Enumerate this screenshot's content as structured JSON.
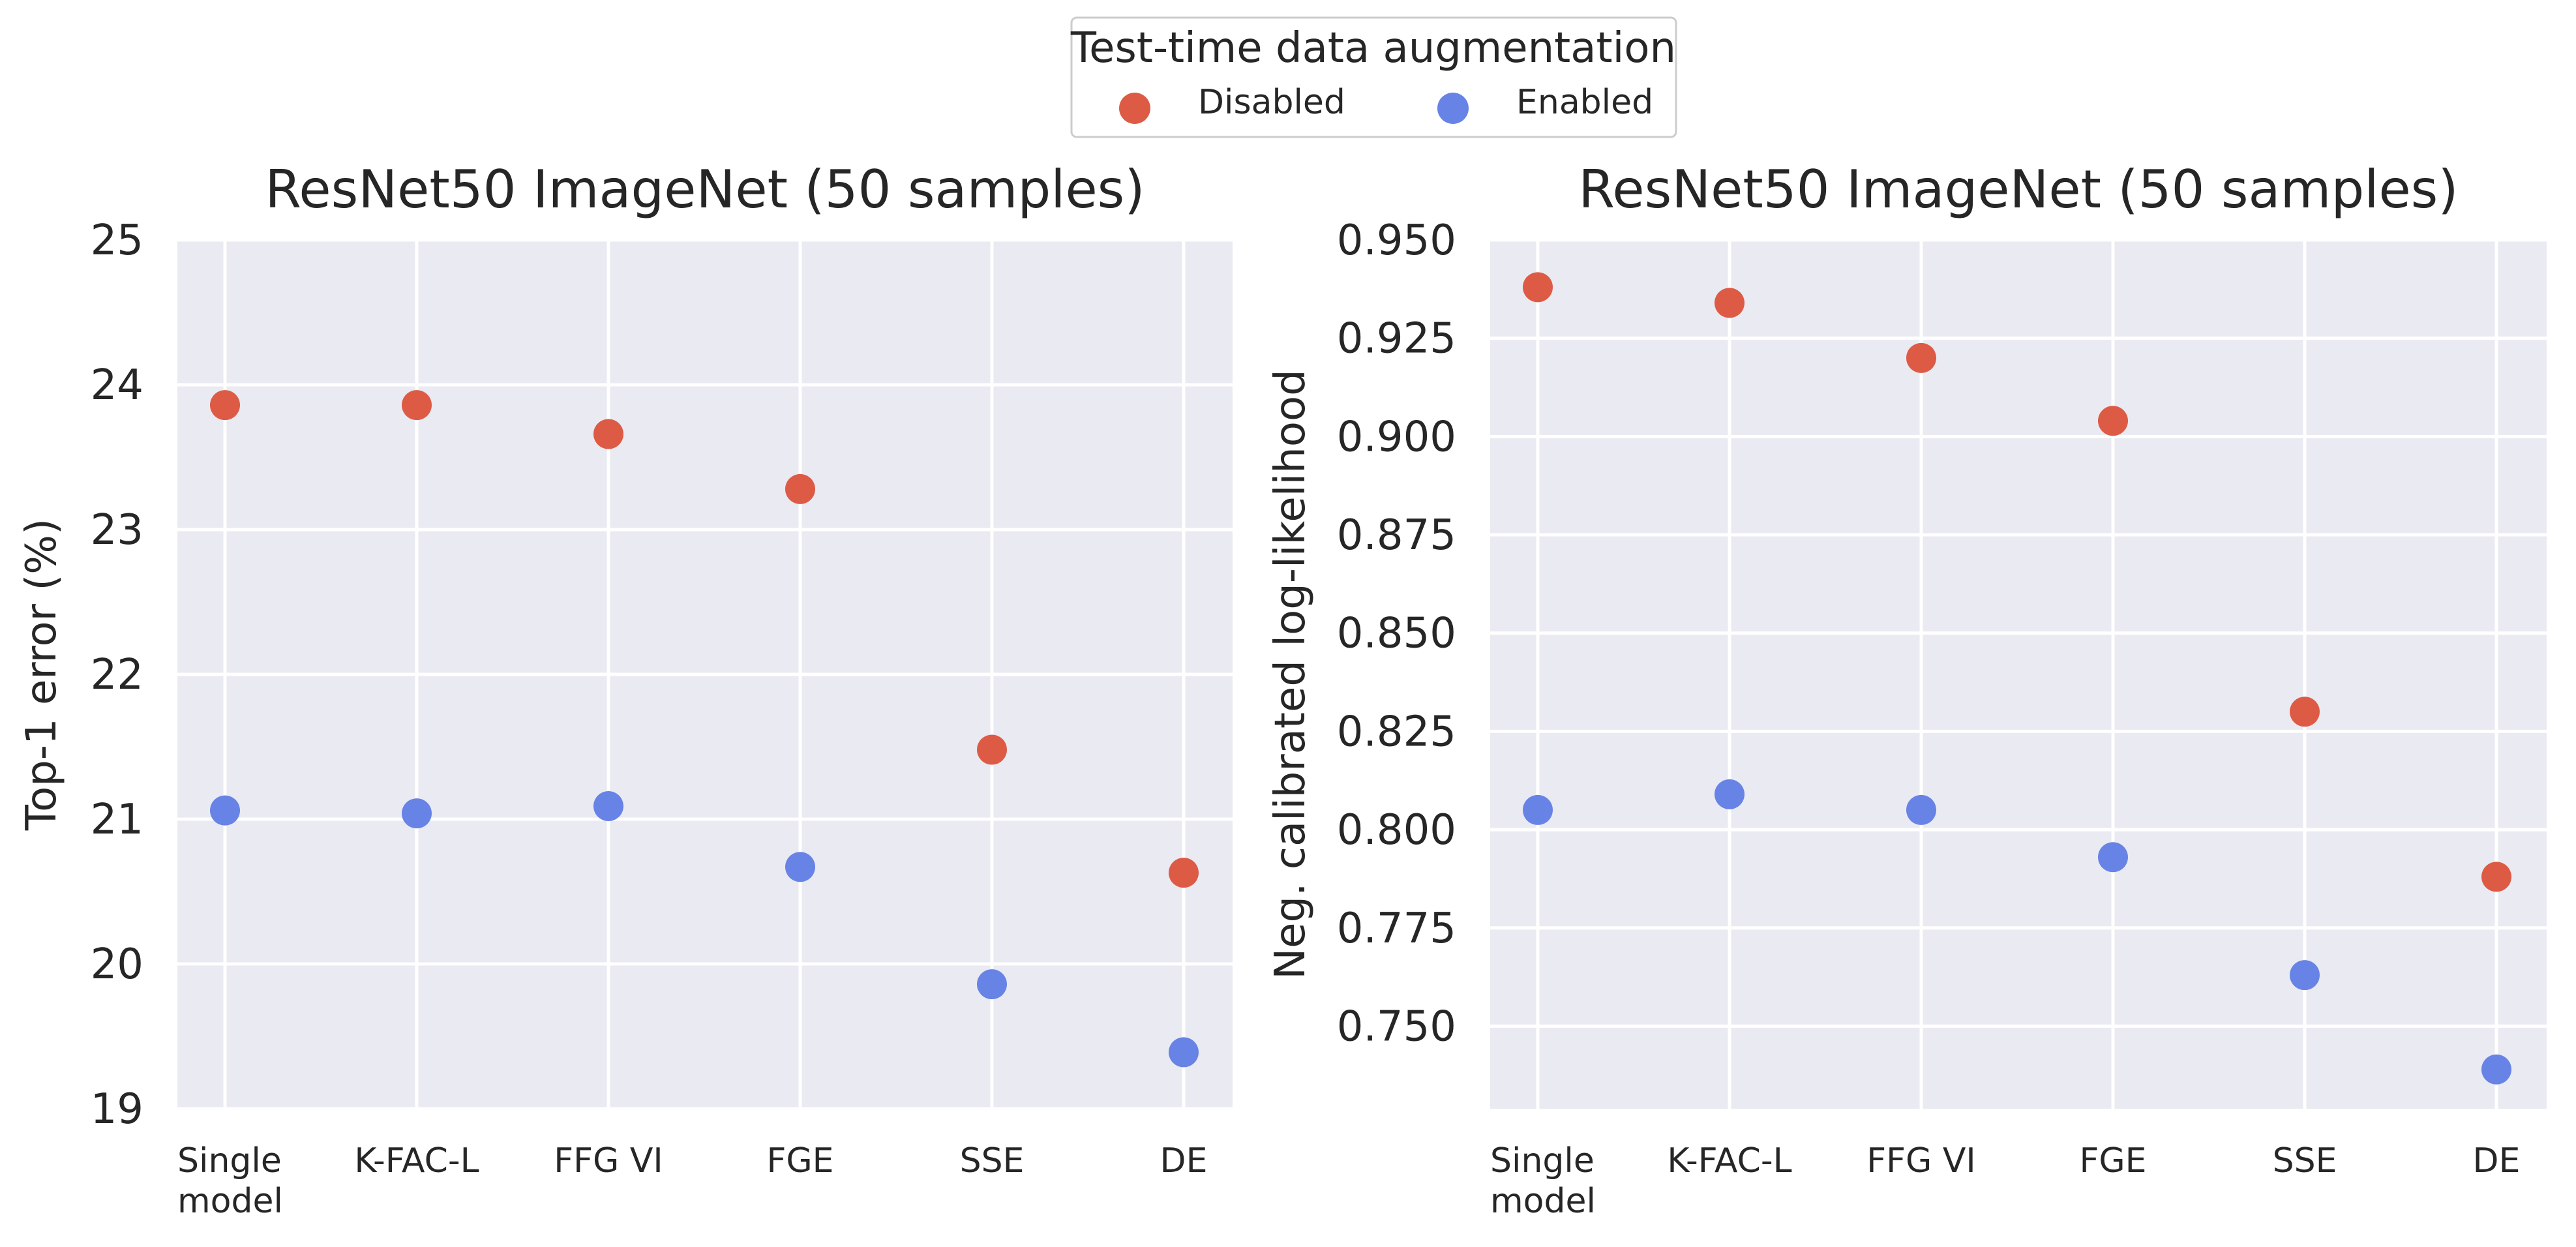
{
  "legend": {
    "title": "Test-time data augmentation",
    "entries": [
      {
        "label": "Disabled",
        "color": "#dd5b45"
      },
      {
        "label": "Enabled",
        "color": "#6783e6"
      }
    ]
  },
  "chart_data": [
    {
      "type": "scatter",
      "title": "ResNet50 ImageNet (50 samples)",
      "xlabel": "",
      "ylabel": "Top-1 error (%)",
      "categories": [
        "Single\nmodel",
        "K-FAC-L",
        "FFG VI",
        "FGE",
        "SSE",
        "DE"
      ],
      "ylim": [
        19,
        25
      ],
      "yticks": [
        19,
        20,
        21,
        22,
        23,
        24,
        25
      ],
      "ytick_labels": [
        "19",
        "20",
        "21",
        "22",
        "23",
        "24",
        "25"
      ],
      "grid": true,
      "series": [
        {
          "name": "Disabled",
          "values": [
            23.86,
            23.86,
            23.66,
            23.28,
            21.48,
            20.63
          ]
        },
        {
          "name": "Enabled",
          "values": [
            21.06,
            21.04,
            21.09,
            20.67,
            19.86,
            19.39
          ]
        }
      ]
    },
    {
      "type": "scatter",
      "title": "ResNet50 ImageNet (50 samples)",
      "xlabel": "",
      "ylabel": "Neg. calibrated log-likelihood",
      "categories": [
        "Single\nmodel",
        "K-FAC-L",
        "FFG VI",
        "FGE",
        "SSE",
        "DE"
      ],
      "ylim": [
        0.729,
        0.95
      ],
      "yticks": [
        0.75,
        0.775,
        0.8,
        0.825,
        0.85,
        0.875,
        0.9,
        0.925,
        0.95
      ],
      "ytick_labels": [
        "0.750",
        "0.775",
        "0.800",
        "0.825",
        "0.850",
        "0.875",
        "0.900",
        "0.925",
        "0.950"
      ],
      "grid": true,
      "series": [
        {
          "name": "Disabled",
          "values": [
            0.938,
            0.934,
            0.92,
            0.904,
            0.83,
            0.788
          ]
        },
        {
          "name": "Enabled",
          "values": [
            0.805,
            0.809,
            0.805,
            0.793,
            0.763,
            0.739
          ]
        }
      ]
    }
  ]
}
